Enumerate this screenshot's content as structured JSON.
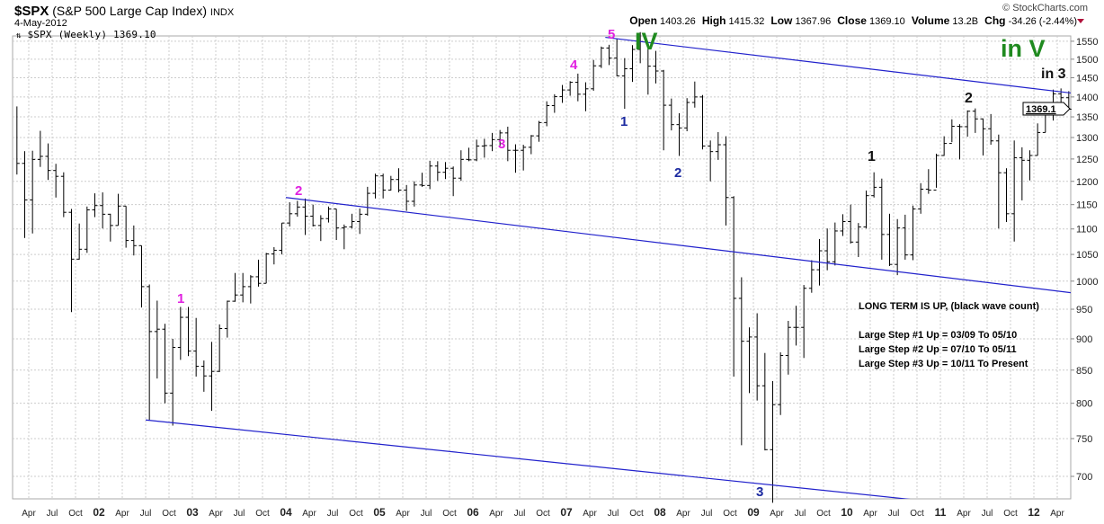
{
  "header": {
    "symbol": "$SPX",
    "name": "(S&P 500 Large Cap Index)",
    "exchange": "INDX",
    "date": "4-May-2012",
    "legend": "$SPX (Weekly) 1369.10",
    "copyright": "© StockCharts.com",
    "open_label": "Open",
    "open": "1403.26",
    "high_label": "High",
    "high": "1415.32",
    "low_label": "Low",
    "low": "1367.96",
    "close_label": "Close",
    "close": "1369.10",
    "volume_label": "Volume",
    "volume": "13.2B",
    "chg_label": "Chg",
    "chg": "-34.26 (-2.44%)"
  },
  "annotations": {
    "mag1": "1",
    "mag2": "2",
    "mag3": "3",
    "mag4": "4",
    "mag5": "5",
    "nav1": "1",
    "nav2": "2",
    "nav3": "3",
    "blk1": "1",
    "blk2": "2",
    "iv": "IV",
    "inv": "in V",
    "in3": "in 3"
  },
  "note": {
    "title": "LONG TERM IS UP, (black wave count)",
    "lines": [
      "Large Step #1 Up = 03/09 To 05/10",
      "Large Step #2 Up = 07/10 To 05/11",
      "Large Step #3 Up = 10/11 To Present"
    ]
  },
  "colors": {
    "bars": "#000000",
    "trendlines": "#2222cc",
    "wave_minor": "#e020e0",
    "wave_navy": "#1c2aa0",
    "wave_major": "#1f8a1f",
    "grid": "#cccccc"
  },
  "chart_data": {
    "type": "ohlc",
    "scale": "log",
    "grid": true,
    "ylim": [
      660,
      1580
    ],
    "last_price_tag": "1369.1",
    "y_ticks": [
      700,
      750,
      800,
      850,
      900,
      950,
      1000,
      1050,
      1100,
      1150,
      1200,
      1250,
      1300,
      1350,
      1400,
      1450,
      1500,
      1550
    ],
    "x_ticks": [
      {
        "d": "2001-04",
        "t": "Apr"
      },
      {
        "d": "2001-07",
        "t": "Jul"
      },
      {
        "d": "2001-10",
        "t": "Oct"
      },
      {
        "d": "2002-01",
        "t": "02",
        "y": true
      },
      {
        "d": "2002-04",
        "t": "Apr"
      },
      {
        "d": "2002-07",
        "t": "Jul"
      },
      {
        "d": "2002-10",
        "t": "Oct"
      },
      {
        "d": "2003-01",
        "t": "03",
        "y": true
      },
      {
        "d": "2003-04",
        "t": "Apr"
      },
      {
        "d": "2003-07",
        "t": "Jul"
      },
      {
        "d": "2003-10",
        "t": "Oct"
      },
      {
        "d": "2004-01",
        "t": "04",
        "y": true
      },
      {
        "d": "2004-04",
        "t": "Apr"
      },
      {
        "d": "2004-07",
        "t": "Jul"
      },
      {
        "d": "2004-10",
        "t": "Oct"
      },
      {
        "d": "2005-01",
        "t": "05",
        "y": true
      },
      {
        "d": "2005-04",
        "t": "Apr"
      },
      {
        "d": "2005-07",
        "t": "Jul"
      },
      {
        "d": "2005-10",
        "t": "Oct"
      },
      {
        "d": "2006-01",
        "t": "06",
        "y": true
      },
      {
        "d": "2006-04",
        "t": "Apr"
      },
      {
        "d": "2006-07",
        "t": "Jul"
      },
      {
        "d": "2006-10",
        "t": "Oct"
      },
      {
        "d": "2007-01",
        "t": "07",
        "y": true
      },
      {
        "d": "2007-04",
        "t": "Apr"
      },
      {
        "d": "2007-07",
        "t": "Jul"
      },
      {
        "d": "2007-10",
        "t": "Oct"
      },
      {
        "d": "2008-01",
        "t": "08",
        "y": true
      },
      {
        "d": "2008-04",
        "t": "Apr"
      },
      {
        "d": "2008-07",
        "t": "Jul"
      },
      {
        "d": "2008-10",
        "t": "Oct"
      },
      {
        "d": "2009-01",
        "t": "09",
        "y": true
      },
      {
        "d": "2009-04",
        "t": "Apr"
      },
      {
        "d": "2009-07",
        "t": "Jul"
      },
      {
        "d": "2009-10",
        "t": "Oct"
      },
      {
        "d": "2010-01",
        "t": "10",
        "y": true
      },
      {
        "d": "2010-04",
        "t": "Apr"
      },
      {
        "d": "2010-07",
        "t": "Jul"
      },
      {
        "d": "2010-10",
        "t": "Oct"
      },
      {
        "d": "2011-01",
        "t": "11",
        "y": true
      },
      {
        "d": "2011-04",
        "t": "Apr"
      },
      {
        "d": "2011-07",
        "t": "Jul"
      },
      {
        "d": "2011-10",
        "t": "Oct"
      },
      {
        "d": "2012-01",
        "t": "12",
        "y": true
      },
      {
        "d": "2012-04",
        "t": "Apr"
      }
    ],
    "trendlines": [
      {
        "from": [
          "2002-07",
          776
        ],
        "to": [
          "2012-10",
          647
        ]
      },
      {
        "from": [
          "2004-01",
          1165
        ],
        "to": [
          "2012-10",
          972
        ]
      },
      {
        "from": [
          "2007-06",
          1561
        ],
        "to": [
          "2012-10",
          1400
        ]
      }
    ],
    "start": "2001-02",
    "bars_hlc": [
      [
        1376,
        1215,
        1240
      ],
      [
        1268,
        1082,
        1160
      ],
      [
        1269,
        1091,
        1249
      ],
      [
        1316,
        1232,
        1256
      ],
      [
        1286,
        1203,
        1224
      ],
      [
        1239,
        1165,
        1211
      ],
      [
        1220,
        1124,
        1134
      ],
      [
        1141,
        945,
        1041
      ],
      [
        1111,
        1040,
        1060
      ],
      [
        1146,
        1053,
        1139
      ],
      [
        1174,
        1124,
        1148
      ],
      [
        1176,
        1101,
        1130
      ],
      [
        1131,
        1075,
        1107
      ],
      [
        1173,
        1107,
        1147
      ],
      [
        1147,
        1063,
        1077
      ],
      [
        1107,
        1048,
        1067
      ],
      [
        1067,
        953,
        990
      ],
      [
        994,
        776,
        912
      ],
      [
        965,
        837,
        916
      ],
      [
        925,
        800,
        815
      ],
      [
        900,
        768,
        886
      ],
      [
        954,
        866,
        936
      ],
      [
        954,
        872,
        880
      ],
      [
        935,
        840,
        856
      ],
      [
        865,
        817,
        841
      ],
      [
        895,
        789,
        848
      ],
      [
        924,
        847,
        917
      ],
      [
        965,
        902,
        964
      ],
      [
        1015,
        963,
        975
      ],
      [
        1015,
        962,
        990
      ],
      [
        1011,
        960,
        1008
      ],
      [
        1040,
        990,
        996
      ],
      [
        1053,
        996,
        1051
      ],
      [
        1064,
        1031,
        1058
      ],
      [
        1112,
        1050,
        1112
      ],
      [
        1155,
        1105,
        1131
      ],
      [
        1158,
        1125,
        1145
      ],
      [
        1163,
        1088,
        1126
      ],
      [
        1150,
        1105,
        1107
      ],
      [
        1128,
        1076,
        1121
      ],
      [
        1146,
        1113,
        1141
      ],
      [
        1141,
        1078,
        1102
      ],
      [
        1109,
        1060,
        1104
      ],
      [
        1131,
        1101,
        1115
      ],
      [
        1142,
        1090,
        1130
      ],
      [
        1188,
        1127,
        1174
      ],
      [
        1217,
        1163,
        1212
      ],
      [
        1217,
        1163,
        1181
      ],
      [
        1212,
        1180,
        1204
      ],
      [
        1229,
        1176,
        1181
      ],
      [
        1192,
        1137,
        1157
      ],
      [
        1200,
        1146,
        1192
      ],
      [
        1219,
        1188,
        1191
      ],
      [
        1246,
        1183,
        1234
      ],
      [
        1245,
        1201,
        1220
      ],
      [
        1243,
        1205,
        1229
      ],
      [
        1233,
        1168,
        1207
      ],
      [
        1270,
        1201,
        1249
      ],
      [
        1276,
        1245,
        1248
      ],
      [
        1295,
        1245,
        1280
      ],
      [
        1297,
        1253,
        1281
      ],
      [
        1311,
        1268,
        1295
      ],
      [
        1318,
        1280,
        1311
      ],
      [
        1326,
        1245,
        1270
      ],
      [
        1284,
        1219,
        1270
      ],
      [
        1283,
        1224,
        1277
      ],
      [
        1306,
        1261,
        1304
      ],
      [
        1340,
        1290,
        1336
      ],
      [
        1389,
        1327,
        1378
      ],
      [
        1407,
        1360,
        1401
      ],
      [
        1431,
        1385,
        1418
      ],
      [
        1441,
        1403,
        1438
      ],
      [
        1461,
        1389,
        1407
      ],
      [
        1438,
        1364,
        1421
      ],
      [
        1498,
        1416,
        1482
      ],
      [
        1535,
        1476,
        1531
      ],
      [
        1540,
        1484,
        1503
      ],
      [
        1556,
        1454,
        1455
      ],
      [
        1503,
        1370,
        1474
      ],
      [
        1539,
        1439,
        1527
      ],
      [
        1576,
        1489,
        1549
      ],
      [
        1545,
        1406,
        1481
      ],
      [
        1523,
        1435,
        1468
      ],
      [
        1471,
        1270,
        1379
      ],
      [
        1396,
        1317,
        1331
      ],
      [
        1359,
        1257,
        1323
      ],
      [
        1397,
        1315,
        1386
      ],
      [
        1440,
        1373,
        1400
      ],
      [
        1405,
        1272,
        1280
      ],
      [
        1293,
        1200,
        1267
      ],
      [
        1313,
        1248,
        1283
      ],
      [
        1303,
        1107,
        1165
      ],
      [
        1168,
        840,
        969
      ],
      [
        1007,
        741,
        896
      ],
      [
        919,
        815,
        903
      ],
      [
        943,
        804,
        826
      ],
      [
        877,
        734,
        735
      ],
      [
        833,
        667,
        798
      ],
      [
        878,
        783,
        873
      ],
      [
        930,
        843,
        919
      ],
      [
        956,
        889,
        919
      ],
      [
        993,
        869,
        987
      ],
      [
        1039,
        979,
        1021
      ],
      [
        1080,
        992,
        1057
      ],
      [
        1101,
        1020,
        1036
      ],
      [
        1113,
        1029,
        1096
      ],
      [
        1130,
        1086,
        1115
      ],
      [
        1150,
        1071,
        1074
      ],
      [
        1112,
        1045,
        1104
      ],
      [
        1180,
        1101,
        1169
      ],
      [
        1220,
        1165,
        1187
      ],
      [
        1206,
        1040,
        1089
      ],
      [
        1131,
        1028,
        1031
      ],
      [
        1120,
        1011,
        1102
      ],
      [
        1129,
        1040,
        1049
      ],
      [
        1148,
        1039,
        1141
      ],
      [
        1196,
        1131,
        1183
      ],
      [
        1227,
        1173,
        1181
      ],
      [
        1262,
        1186,
        1258
      ],
      [
        1303,
        1257,
        1286
      ],
      [
        1344,
        1289,
        1327
      ],
      [
        1332,
        1249,
        1326
      ],
      [
        1366,
        1302,
        1364
      ],
      [
        1371,
        1311,
        1345
      ],
      [
        1346,
        1258,
        1321
      ],
      [
        1357,
        1283,
        1292
      ],
      [
        1307,
        1101,
        1219
      ],
      [
        1229,
        1114,
        1131
      ],
      [
        1293,
        1075,
        1253
      ],
      [
        1277,
        1159,
        1247
      ],
      [
        1270,
        1202,
        1258
      ],
      [
        1334,
        1258,
        1312
      ],
      [
        1378,
        1312,
        1366
      ],
      [
        1419,
        1341,
        1408
      ],
      [
        1422,
        1358,
        1398
      ],
      [
        1415,
        1368,
        1369
      ]
    ]
  }
}
